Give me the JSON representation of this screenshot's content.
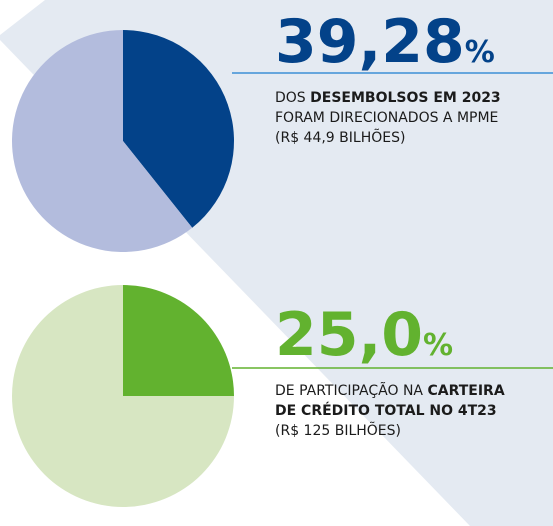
{
  "chart_data": [
    {
      "type": "pie",
      "values": [
        39.28,
        60.72
      ],
      "value_labels": [
        "39,28",
        null
      ],
      "unit": "%",
      "colors": [
        "#034289",
        "#b3bcdd"
      ],
      "accent": "#034289",
      "rule_color": "#3d8fd6",
      "caption": [
        [
          {
            "text": "DOS ",
            "bold": false
          },
          {
            "text": "DESEMBOLSOS EM 2023",
            "bold": true
          }
        ],
        [
          {
            "text": "FORAM DIRECIONADOS A MPME",
            "bold": false
          }
        ],
        [
          {
            "text": "(R$ 44,9 BILHÕES)",
            "bold": false
          }
        ]
      ]
    },
    {
      "type": "pie",
      "values": [
        25.0,
        75.0
      ],
      "value_labels": [
        "25,0",
        null
      ],
      "unit": "%",
      "colors": [
        "#62b22f",
        "#d7e6c2"
      ],
      "accent": "#62b22f",
      "rule_color": "#62b22f",
      "caption": [
        [
          {
            "text": "DE PARTICIPAÇÃO NA ",
            "bold": false
          },
          {
            "text": "CARTEIRA",
            "bold": true
          }
        ],
        [
          {
            "text": "DE CRÉDITO TOTAL NO 4T23",
            "bold": true
          }
        ],
        [
          {
            "text": "(R$ 125 BILHÕES)",
            "bold": false
          }
        ]
      ]
    }
  ]
}
